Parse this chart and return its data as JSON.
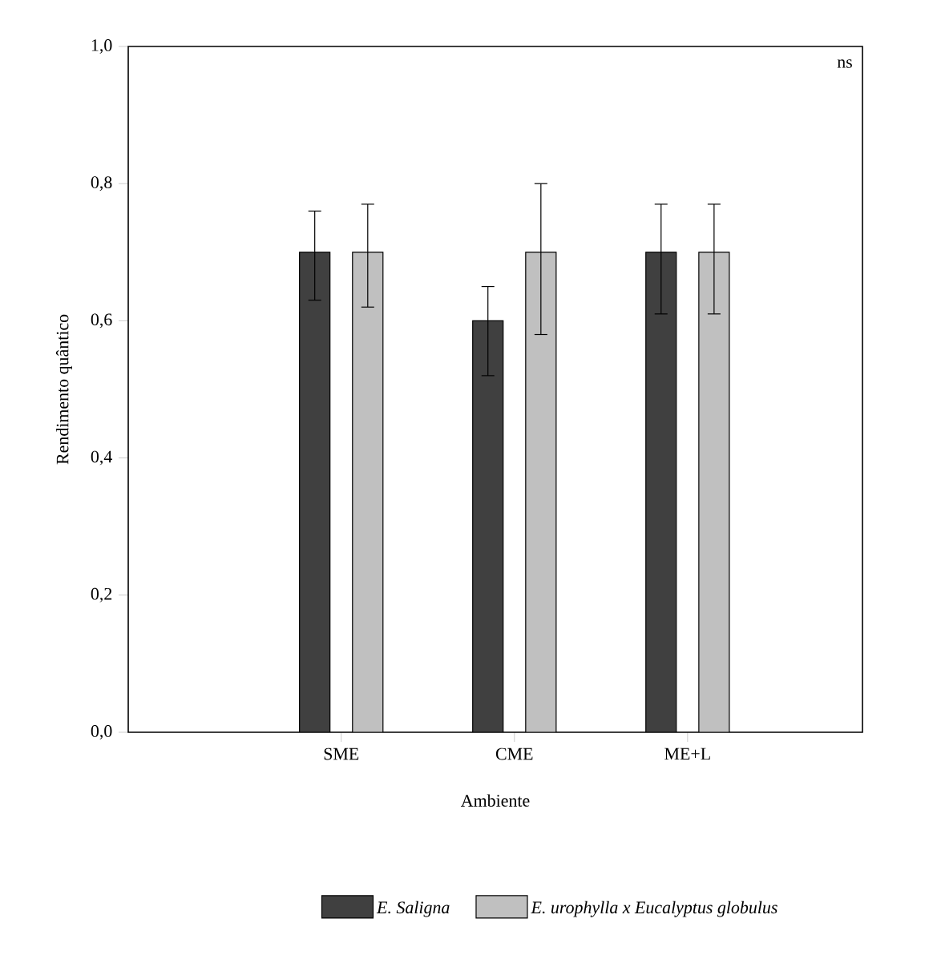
{
  "chart_data": {
    "type": "bar",
    "ylabel": "Rendimento quântico",
    "xlabel": "Ambiente",
    "categories": [
      "SME",
      "CME",
      "ME+L"
    ],
    "series": [
      {
        "name": "E. Saligna",
        "color": "#404040",
        "values": [
          0.7,
          0.6,
          0.7
        ],
        "errors": [
          [
            0.63,
            0.76
          ],
          [
            0.52,
            0.65
          ],
          [
            0.61,
            0.77
          ]
        ]
      },
      {
        "name": "E. urophylla x Eucalyptus globulus",
        "color": "#c0c0c0",
        "values": [
          0.7,
          0.7,
          0.7
        ],
        "errors": [
          [
            0.62,
            0.77
          ],
          [
            0.58,
            0.8
          ],
          [
            0.61,
            0.77
          ]
        ]
      }
    ],
    "ylim": [
      0,
      1
    ],
    "yticks": [
      {
        "value": 0,
        "label": "0,0"
      },
      {
        "value": 0.2,
        "label": "0,2"
      },
      {
        "value": 0.4,
        "label": "0,4"
      },
      {
        "value": 0.6,
        "label": "0,6"
      },
      {
        "value": 0.8,
        "label": "0,8"
      },
      {
        "value": 1,
        "label": "1,0"
      }
    ],
    "annotations": [
      "ns"
    ],
    "legend": "bottom"
  }
}
